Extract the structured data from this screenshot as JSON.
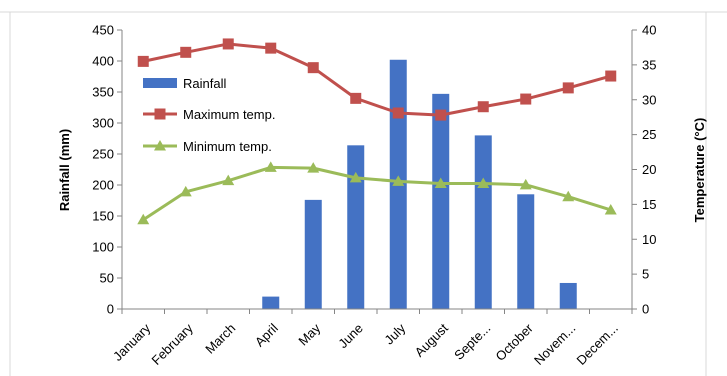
{
  "chart_data": {
    "type": "bar",
    "categories": [
      "January",
      "February",
      "March",
      "April",
      "May",
      "June",
      "July",
      "August",
      "Septe...",
      "October",
      "Novem...",
      "Decem..."
    ],
    "ylabel": "Rainfall (mm)",
    "y2label": "Temperature (°C)",
    "ylim": [
      0,
      450
    ],
    "yticks": [
      0,
      50,
      100,
      150,
      200,
      250,
      300,
      350,
      400,
      450
    ],
    "y2lim": [
      0,
      40
    ],
    "y2ticks": [
      0,
      5,
      10,
      15,
      20,
      25,
      30,
      35,
      40
    ],
    "grid": false,
    "legend_position": "top-left",
    "series": [
      {
        "name": "Rainfall",
        "type": "bar",
        "axis": "left",
        "color": "#4472C4",
        "values": [
          0,
          0,
          0,
          20,
          176,
          264,
          402,
          347,
          280,
          185,
          42,
          0
        ]
      },
      {
        "name": "Maximum temp.",
        "type": "line",
        "axis": "right",
        "marker": "square",
        "color": "#C0504D",
        "values": [
          35.5,
          36.8,
          38.0,
          37.4,
          34.6,
          30.2,
          28.1,
          27.8,
          29.0,
          30.1,
          31.7,
          33.4
        ]
      },
      {
        "name": "Minimum temp.",
        "type": "line",
        "axis": "right",
        "marker": "triangle",
        "color": "#9BBB59",
        "values": [
          12.8,
          16.8,
          18.4,
          20.3,
          20.2,
          18.8,
          18.3,
          18.0,
          18.0,
          17.8,
          16.1,
          14.2
        ]
      }
    ]
  }
}
